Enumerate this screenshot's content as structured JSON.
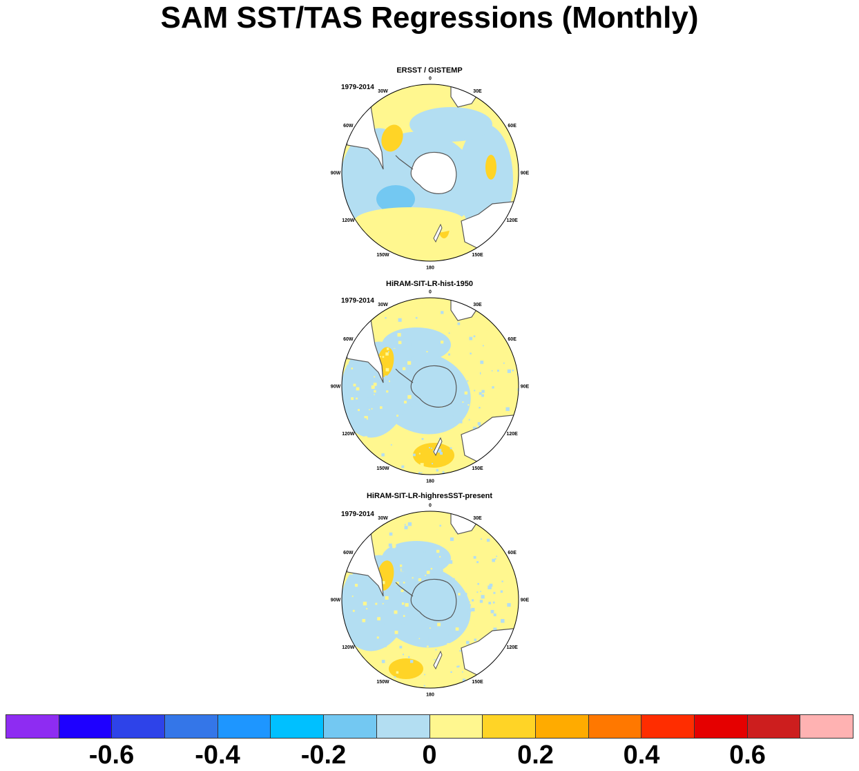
{
  "title": "SAM SST/TAS Regressions (Monthly)",
  "lon_labels": [
    "0",
    "30E",
    "60E",
    "90E",
    "120E",
    "150E",
    "180",
    "150W",
    "120W",
    "90W",
    "60W",
    "30W"
  ],
  "colors": {
    "land": "#ffffff",
    "coast": "#555555",
    "ocean_neg": "#b3def2",
    "ocean_pos": "#fff78f",
    "pos_strong": "#ffd426",
    "neg_strong": "#73c8f2"
  },
  "chart_data": [
    {
      "type": "heatmap",
      "projection": "south-polar-stereographic",
      "title": "ERSST / GISTEMP",
      "period": "1979-2014"
    },
    {
      "type": "heatmap",
      "projection": "south-polar-stereographic",
      "title": "HiRAM-SIT-LR-hist-1950",
      "period": "1979-2014"
    },
    {
      "type": "heatmap",
      "projection": "south-polar-stereographic",
      "title": "HiRAM-SIT-LR-highresSST-present",
      "period": "1979-2014"
    }
  ],
  "colorbar": {
    "colors": [
      "#8e2cf2",
      "#1e00ff",
      "#2e43e9",
      "#3476e8",
      "#1e96ff",
      "#00c0ff",
      "#73c8f2",
      "#b3def2",
      "#fff78f",
      "#ffd426",
      "#ffab00",
      "#ff7800",
      "#ff2d00",
      "#e50000",
      "#cd1e1e",
      "#ffb2b2"
    ],
    "tick_labels": [
      "-0.6",
      "-0.4",
      "-0.2",
      "0",
      "0.2",
      "0.4",
      "0.6"
    ],
    "tick_values": [
      -0.6,
      -0.4,
      -0.2,
      0,
      0.2,
      0.4,
      0.6
    ],
    "boundaries": [
      -0.7,
      -0.6,
      -0.5,
      -0.4,
      -0.3,
      -0.2,
      -0.1,
      0,
      0.1,
      0.2,
      0.3,
      0.4,
      0.5,
      0.6,
      0.7
    ]
  }
}
